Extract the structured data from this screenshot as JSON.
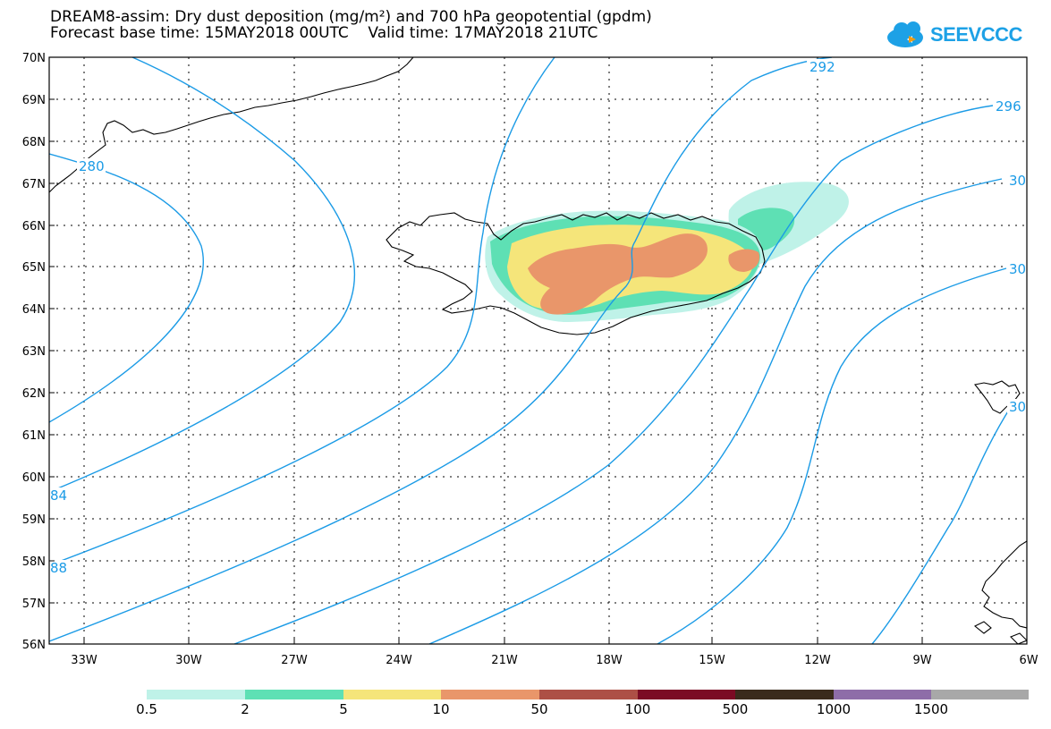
{
  "title": {
    "line1": "DREAM8-assim: Dry dust deposition (mg/m²) and 700 hPa geopotential (gpdm)",
    "line2": "Forecast base time: 15MAY2018 00UTC    Valid time: 17MAY2018 21UTC"
  },
  "logo": {
    "text": "SEEVCCC"
  },
  "axes": {
    "lat_labels": [
      "70N",
      "69N",
      "68N",
      "67N",
      "66N",
      "65N",
      "64N",
      "63N",
      "62N",
      "61N",
      "60N",
      "59N",
      "58N",
      "57N",
      "56N"
    ],
    "lon_labels": [
      "33W",
      "30W",
      "27W",
      "24W",
      "21W",
      "18W",
      "15W",
      "12W",
      "9W",
      "6W"
    ]
  },
  "contour_labels": {
    "c292": "292",
    "c296": "296",
    "c280": "280",
    "c284": "84",
    "c288": "88",
    "c300a": "30",
    "c300b": "30",
    "c300c": "30"
  },
  "legend": {
    "labels": [
      "0.5",
      "2",
      "5",
      "10",
      "50",
      "100",
      "500",
      "1000",
      "1500"
    ],
    "colors": [
      "#bff2e8",
      "#5ee0b4",
      "#f5e57a",
      "#e9966a",
      "#ad5046",
      "#7b0b24",
      "#3a2b1c",
      "#8e6da8",
      "#a8a8a8"
    ]
  },
  "colors": {
    "contour": "#1b9be6",
    "coast": "#000000"
  }
}
